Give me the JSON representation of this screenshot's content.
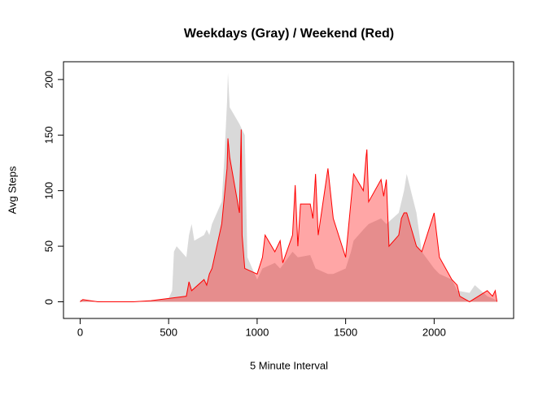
{
  "chart_data": {
    "type": "area",
    "title": "Weekdays (Gray) / Weekend (Red)",
    "x_label": "5 Minute Interval",
    "y_label": "Avg Steps",
    "xlim": [
      -94,
      2449
    ],
    "ylim": [
      -15,
      216
    ],
    "xticks": [
      0,
      500,
      1000,
      1500,
      2000
    ],
    "yticks": [
      0,
      50,
      100,
      150,
      200
    ],
    "series": [
      {
        "name": "Weekdays",
        "color": "#d9d9d9",
        "opacity": 1,
        "x": [
          0,
          100,
          200,
          300,
          400,
          500,
          520,
          530,
          545,
          600,
          615,
          630,
          645,
          700,
          715,
          730,
          745,
          800,
          815,
          830,
          835,
          845,
          900,
          915,
          930,
          945,
          1000,
          1030,
          1100,
          1130,
          1200,
          1230,
          1300,
          1330,
          1400,
          1430,
          1500,
          1530,
          1545,
          1600,
          1630,
          1700,
          1730,
          1800,
          1830,
          1845,
          1900,
          1930,
          2000,
          2030,
          2100,
          2130,
          2200,
          2230,
          2300,
          2330,
          2355
        ],
        "values": [
          2,
          0.5,
          0,
          0,
          1,
          3,
          10,
          45,
          50,
          40,
          60,
          70,
          55,
          60,
          65,
          60,
          70,
          90,
          130,
          180,
          206,
          175,
          160,
          155,
          150,
          40,
          20,
          30,
          35,
          30,
          45,
          40,
          42,
          30,
          25,
          25,
          30,
          45,
          55,
          65,
          70,
          75,
          70,
          80,
          100,
          115,
          80,
          45,
          30,
          25,
          20,
          10,
          8,
          15,
          5,
          3,
          1
        ]
      },
      {
        "name": "Weekend",
        "color": "#ff0000",
        "opacity": 0.35,
        "x": [
          0,
          15,
          100,
          300,
          400,
          500,
          600,
          615,
          630,
          700,
          715,
          730,
          745,
          800,
          830,
          835,
          845,
          900,
          910,
          915,
          930,
          1000,
          1030,
          1045,
          1100,
          1130,
          1145,
          1200,
          1215,
          1230,
          1245,
          1300,
          1315,
          1330,
          1345,
          1400,
          1430,
          1500,
          1545,
          1600,
          1615,
          1620,
          1630,
          1700,
          1715,
          1730,
          1745,
          1800,
          1815,
          1830,
          1845,
          1900,
          1930,
          2000,
          2015,
          2030,
          2100,
          2130,
          2145,
          2200,
          2300,
          2330,
          2345,
          2355
        ],
        "values": [
          0,
          2,
          0,
          0,
          1,
          3,
          5,
          18,
          10,
          20,
          15,
          25,
          30,
          70,
          120,
          147,
          130,
          80,
          155,
          60,
          30,
          25,
          40,
          60,
          45,
          55,
          35,
          60,
          105,
          50,
          88,
          88,
          75,
          115,
          60,
          120,
          75,
          40,
          115,
          100,
          130,
          137,
          90,
          110,
          95,
          110,
          50,
          60,
          75,
          80,
          80,
          50,
          45,
          80,
          60,
          40,
          20,
          15,
          5,
          0,
          10,
          5,
          10,
          0
        ]
      }
    ]
  }
}
